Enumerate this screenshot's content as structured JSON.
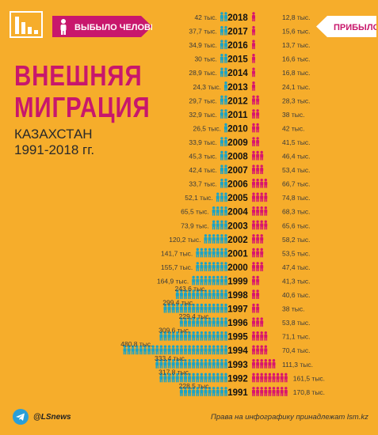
{
  "header": {
    "outflow_label": "ВЫБЫЛО ЧЕЛОВЕК",
    "inflow_label": "ПРИБЫЛО"
  },
  "title": {
    "line1": "ВНЕШНЯЯ",
    "line2": "МИГРАЦИЯ"
  },
  "subtitle": {
    "line1": "КАЗАХСТАН",
    "line2": "1991-2018 гг."
  },
  "footer": {
    "handle": "@LSnews",
    "credit": "Права на инфографику принадлежат lsm.kz"
  },
  "colors": {
    "background": "#f6ad2b",
    "outflow": "#1ba3c6",
    "inflow": "#d8156e",
    "title": "#c8176c",
    "pill": "#c8176c",
    "pill_in": "#ffffff"
  },
  "chart_data": {
    "type": "bar",
    "orientation": "diverging-pictogram",
    "unit": "тыс.",
    "series": [
      {
        "name": "ВЫБЫЛО ЧЕЛОВЕК",
        "color": "#1ba3c6",
        "values": [
          42,
          37.7,
          34.9,
          30,
          28.9,
          24.3,
          29.7,
          32.9,
          26.5,
          33.9,
          45.3,
          42.4,
          33.7,
          52.1,
          65.5,
          73.9,
          120.2,
          141.7,
          155.7,
          164.9,
          243.6,
          299.4,
          229.4,
          309.6,
          480.8,
          333.4,
          317.8,
          228.5
        ],
        "labels": [
          "42 тыс.",
          "37,7 тыс.",
          "34,9 тыс.",
          "30 тыс.",
          "28,9 тыс.",
          "24,3 тыс.",
          "29,7 тыс.",
          "32,9 тыс.",
          "26,5 тыс.",
          "33,9 тыс.",
          "45,3 тыс.",
          "42,4 тыс.",
          "33,7 тыс.",
          "52,1 тыс.",
          "65,5 тыс.",
          "73,9 тыс.",
          "120,2 тыс.",
          "141,7 тыс.",
          "155,7 тыс.",
          "164,9 тыс.",
          "243,6 тыс.",
          "299,4 тыс.",
          "229,4 тыс.",
          "309,6 тыс.",
          "480,8 тыс.",
          "333,4 тыс.",
          "317,8 тыс.",
          "228,5 тыс."
        ]
      },
      {
        "name": "ПРИБЫЛО",
        "color": "#d8156e",
        "values": [
          12.8,
          15.6,
          13.7,
          16.6,
          16.8,
          24.1,
          28.3,
          38,
          42,
          41.5,
          46.4,
          53.4,
          66.7,
          74.8,
          68.3,
          65.6,
          58.2,
          53.5,
          47.4,
          41.3,
          40.6,
          38,
          53.8,
          71.1,
          70.4,
          111.3,
          161.5,
          170.8
        ],
        "labels": [
          "12,8 тыс.",
          "15,6 тыс.",
          "13,7 тыс.",
          "16,6 тыс.",
          "16,8 тыс.",
          "24,1 тыс.",
          "28,3 тыс.",
          "38 тыс.",
          "42 тыс.",
          "41,5 тыс.",
          "46,4 тыс.",
          "53,4 тыс.",
          "66,7 тыс.",
          "74,8 тыс.",
          "68,3 тыс.",
          "65,6 тыс.",
          "58,2 тыс.",
          "53,5 тыс.",
          "47,4 тыс.",
          "41,3 тыс.",
          "40,6 тыс.",
          "38 тыс.",
          "53,8 тыс.",
          "71,1 тыс.",
          "70,4 тыс.",
          "111,3 тыс.",
          "161,5 тыс.",
          "170,8 тыс."
        ]
      }
    ],
    "categories": [
      "2018",
      "2017",
      "2016",
      "2015",
      "2014",
      "2013",
      "2012",
      "2011",
      "2010",
      "2009",
      "2008",
      "2007",
      "2006",
      "2005",
      "2004",
      "2003",
      "2002",
      "2001",
      "2000",
      "1999",
      "1998",
      "1997",
      "1996",
      "1995",
      "1994",
      "1993",
      "1992",
      "1991"
    ],
    "legend": "top",
    "grid": false
  }
}
